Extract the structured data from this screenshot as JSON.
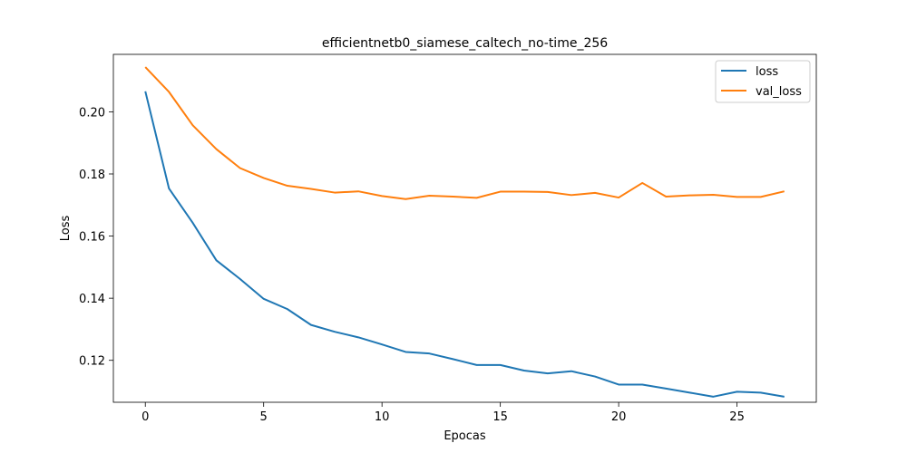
{
  "chart_data": {
    "type": "line",
    "title": "efficientnetb0_siamese_caltech_no-time_256",
    "xlabel": "Epocas",
    "ylabel": "Loss",
    "xlim": [
      -1.35,
      28.35
    ],
    "ylim": [
      0.1065,
      0.2185
    ],
    "xticks": [
      0,
      5,
      10,
      15,
      20,
      25
    ],
    "yticks": [
      0.12,
      0.14,
      0.16,
      0.18,
      0.2
    ],
    "ytick_labels": [
      "0.12",
      "0.14",
      "0.16",
      "0.18",
      "0.20"
    ],
    "xtick_labels": [
      "0",
      "5",
      "10",
      "15",
      "20",
      "25"
    ],
    "grid": false,
    "legend_position": "top-right",
    "x": [
      0,
      1,
      2,
      3,
      4,
      5,
      6,
      7,
      8,
      9,
      10,
      11,
      12,
      13,
      14,
      15,
      16,
      17,
      18,
      19,
      20,
      21,
      22,
      23,
      24,
      25,
      26,
      27
    ],
    "series": [
      {
        "name": "loss",
        "color": "#1f77b4",
        "values": [
          0.2066,
          0.1753,
          0.1643,
          0.1522,
          0.1462,
          0.1398,
          0.1365,
          0.1314,
          0.1292,
          0.1274,
          0.1251,
          0.1227,
          0.1222,
          0.1204,
          0.1185,
          0.1185,
          0.1167,
          0.1158,
          0.1165,
          0.1148,
          0.1122,
          0.1122,
          0.1109,
          0.1096,
          0.1083,
          0.1099,
          0.1096,
          0.1083
        ]
      },
      {
        "name": "val_loss",
        "color": "#ff7f0e",
        "values": [
          0.2144,
          0.2064,
          0.1957,
          0.188,
          0.1819,
          0.1787,
          0.1762,
          0.1752,
          0.174,
          0.1744,
          0.1729,
          0.1719,
          0.173,
          0.1727,
          0.1723,
          0.1743,
          0.1743,
          0.1742,
          0.1732,
          0.1739,
          0.1724,
          0.1771,
          0.1727,
          0.1731,
          0.1733,
          0.1726,
          0.1726,
          0.1744
        ]
      }
    ]
  }
}
